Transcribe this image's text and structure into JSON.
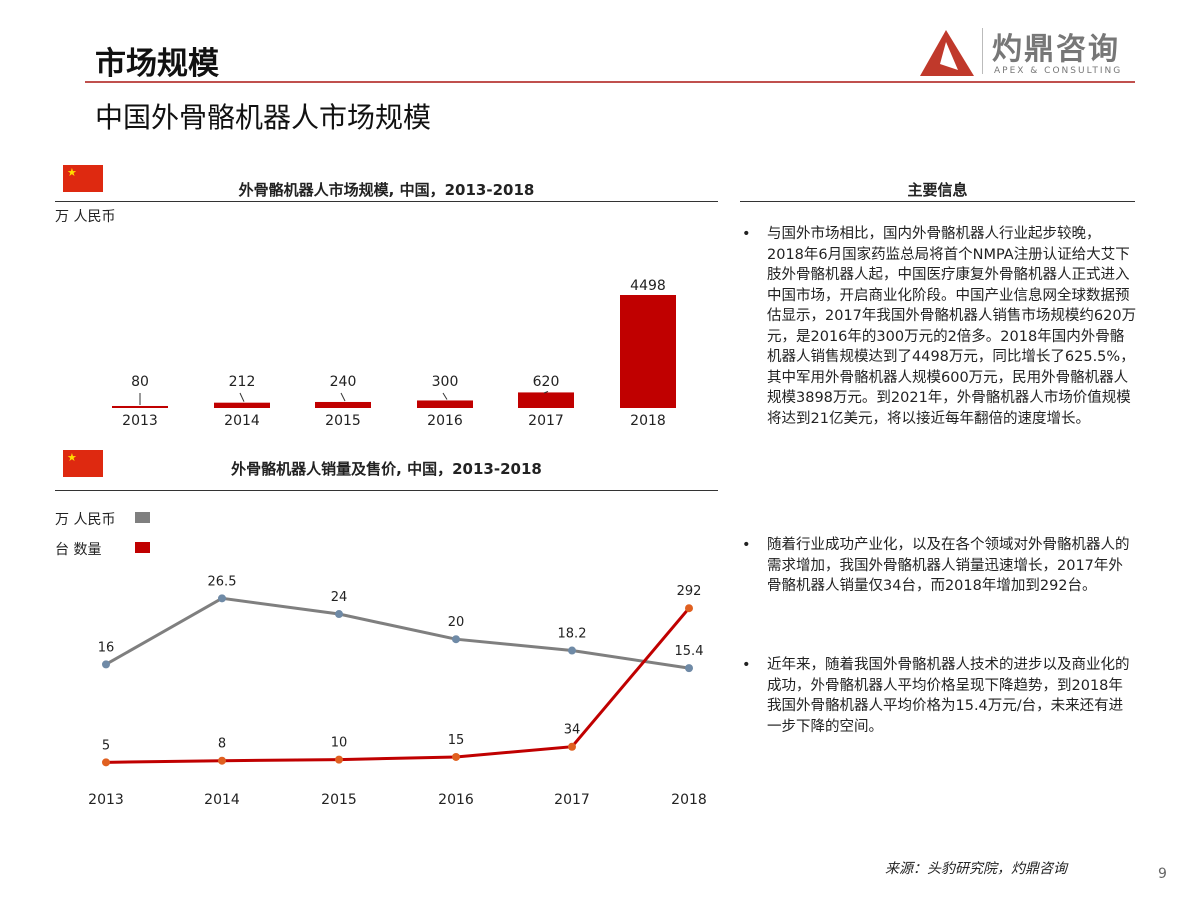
{
  "header": {
    "title": "市场规模",
    "subtitle": "中国外骨骼机器人市场规模"
  },
  "logo": {
    "name": "灼鼎咨询",
    "tagline": "APEX & CONSULTING",
    "color": "#c0392b"
  },
  "info": {
    "title": "主要信息",
    "bullets": [
      "与国外市场相比，国内外骨骼机器人行业起步较晚，2018年6月国家药监总局将首个NMPA注册认证给大艾下肢外骨骼机器人起，中国医疗康复外骨骼机器人正式进入中国市场，开启商业化阶段。中国产业信息网全球数据预估显示，2017年我国外骨骼机器人销售市场规模约620万元，是2016年的300万元的2倍多。2018年国内外骨骼机器人销售规模达到了4498万元，同比增长了625.5%，其中军用外骨骼机器人规模600万元，民用外骨骼机器人规模3898万元。到2021年，外骨骼机器人市场价值规模将达到21亿美元，将以接近每年翻倍的速度增长。",
      "随着行业成功产业化，以及在各个领域对外骨骼机器人的需求增加，我国外骨骼机器人销量迅速增长，2017年外骨骼机器人销量仅34台，而2018年增加到292台。",
      "近年来，随着我国外骨骼机器人技术的进步以及商业化的成功，外骨骼机器人平均价格呈现下降趋势，到2018年我国外骨骼机器人平均价格为15.4万元/台，未来还有进一步下降的空间。"
    ]
  },
  "chart_data": [
    {
      "type": "bar",
      "title": "外骨骼机器人市场规模, 中国，2013-2018",
      "ylabel": "万 人民币",
      "categories": [
        "2013",
        "2014",
        "2015",
        "2016",
        "2017",
        "2018"
      ],
      "values": [
        80,
        212,
        240,
        300,
        620,
        4498
      ],
      "color": "#c00000",
      "grid": false
    },
    {
      "type": "line",
      "title": "外骨骼机器人销量及售价, 中国，2013-2018",
      "categories": [
        "2013",
        "2014",
        "2015",
        "2016",
        "2017",
        "2018"
      ],
      "legend_placement": "top-left",
      "grid": false,
      "series": [
        {
          "name": "万 人民币",
          "values": [
            16,
            26.5,
            24,
            20,
            18.2,
            15.4
          ],
          "color": "#7f7f7f",
          "marker_color": "#6f8aa6"
        },
        {
          "name": "台 数量",
          "values": [
            5,
            8,
            10,
            15,
            34,
            292
          ],
          "color": "#c00000",
          "marker_color": "#e06020"
        }
      ]
    }
  ],
  "footer": {
    "source": "来源：头豹研究院，灼鼎咨询",
    "page": "9"
  }
}
